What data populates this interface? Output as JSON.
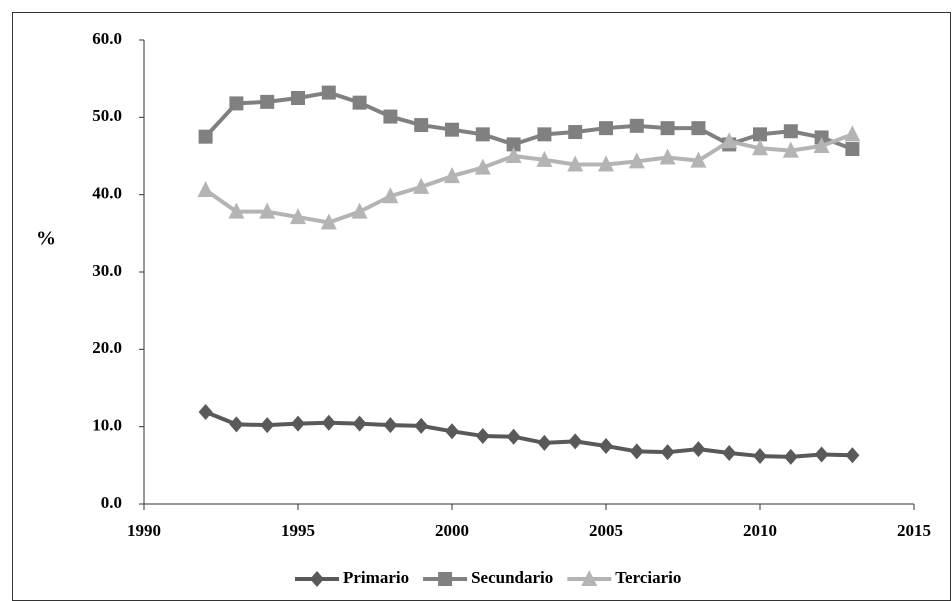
{
  "chart_data": {
    "type": "line",
    "y_label": "%",
    "x": [
      1992,
      1993,
      1994,
      1995,
      1996,
      1997,
      1998,
      1999,
      2000,
      2001,
      2002,
      2003,
      2004,
      2005,
      2006,
      2007,
      2008,
      2009,
      2010,
      2011,
      2012,
      2013
    ],
    "series": [
      {
        "name": "Primario",
        "color": "#595959",
        "marker": "diamond",
        "values": [
          11.9,
          10.3,
          10.2,
          10.4,
          10.5,
          10.4,
          10.2,
          10.1,
          9.4,
          8.8,
          8.7,
          7.9,
          8.1,
          7.5,
          6.8,
          6.7,
          7.1,
          6.6,
          6.2,
          6.1,
          6.4,
          6.3
        ]
      },
      {
        "name": "Secundario",
        "color": "#808080",
        "marker": "square",
        "values": [
          47.5,
          51.8,
          52.0,
          52.5,
          53.2,
          51.9,
          50.1,
          49.0,
          48.4,
          47.8,
          46.5,
          47.8,
          48.1,
          48.6,
          48.9,
          48.6,
          48.6,
          46.5,
          47.8,
          48.2,
          47.4,
          45.9
        ]
      },
      {
        "name": "Terciario",
        "color": "#b4b4b4",
        "marker": "triangle",
        "values": [
          40.6,
          37.8,
          37.8,
          37.1,
          36.4,
          37.8,
          39.8,
          41.0,
          42.4,
          43.5,
          45.0,
          44.5,
          43.9,
          43.9,
          44.3,
          44.8,
          44.4,
          46.9,
          46.0,
          45.7,
          46.3,
          47.8
        ]
      }
    ],
    "xlim": [
      1990,
      2015
    ],
    "xticks": [
      1990,
      1995,
      2000,
      2005,
      2010,
      2015
    ],
    "ylim": [
      0,
      60
    ],
    "yticks": [
      {
        "value": 0,
        "label": "0.0"
      },
      {
        "value": 10,
        "label": "10.0"
      },
      {
        "value": 20,
        "label": "20.0"
      },
      {
        "value": 30,
        "label": "30.0"
      },
      {
        "value": 40,
        "label": "40.0"
      },
      {
        "value": 50,
        "label": "50.0"
      },
      {
        "value": 60,
        "label": "60.0"
      }
    ],
    "grid": false,
    "legend": "bottom"
  }
}
